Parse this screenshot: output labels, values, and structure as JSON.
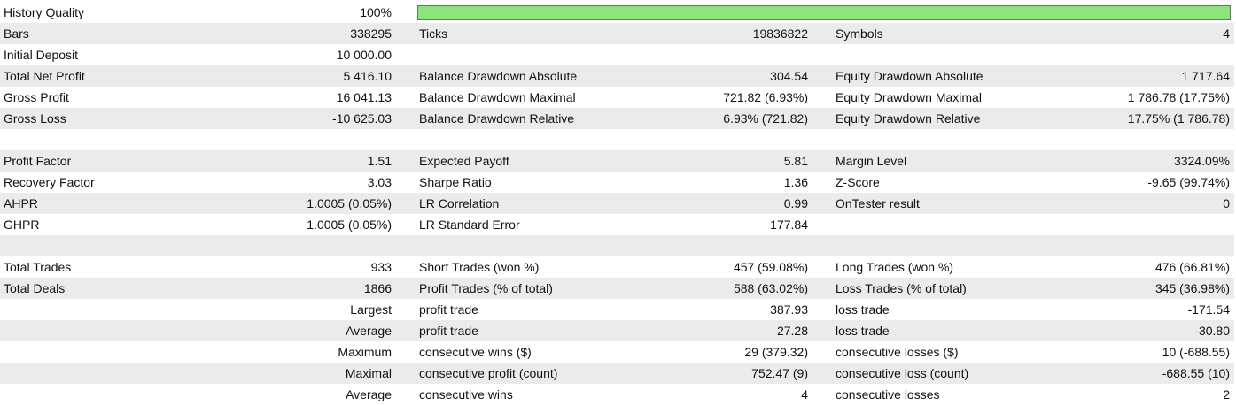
{
  "history_quality": {
    "label": "History Quality",
    "value": "100%",
    "fill_fraction": 1.0,
    "bar_color": "#8ae47a"
  },
  "row_shade_color": "#ebebeb",
  "bars": {
    "label": "Bars",
    "value": "338295"
  },
  "ticks": {
    "label": "Ticks",
    "value": "19836822"
  },
  "symbols": {
    "label": "Symbols",
    "value": "4"
  },
  "initial_deposit": {
    "label": "Initial Deposit",
    "value": "10 000.00"
  },
  "total_net_profit": {
    "label": "Total Net Profit",
    "value": "5 416.10"
  },
  "balance_dd_abs": {
    "label": "Balance Drawdown Absolute",
    "value": "304.54"
  },
  "equity_dd_abs": {
    "label": "Equity Drawdown Absolute",
    "value": "1 717.64"
  },
  "gross_profit": {
    "label": "Gross Profit",
    "value": "16 041.13"
  },
  "balance_dd_max": {
    "label": "Balance Drawdown Maximal",
    "value": "721.82 (6.93%)"
  },
  "equity_dd_max": {
    "label": "Equity Drawdown Maximal",
    "value": "1 786.78 (17.75%)"
  },
  "gross_loss": {
    "label": "Gross Loss",
    "value": "-10 625.03"
  },
  "balance_dd_rel": {
    "label": "Balance Drawdown Relative",
    "value": "6.93% (721.82)"
  },
  "equity_dd_rel": {
    "label": "Equity Drawdown Relative",
    "value": "17.75% (1 786.78)"
  },
  "profit_factor": {
    "label": "Profit Factor",
    "value": "1.51"
  },
  "expected_payoff": {
    "label": "Expected Payoff",
    "value": "5.81"
  },
  "margin_level": {
    "label": "Margin Level",
    "value": "3324.09%"
  },
  "recovery_factor": {
    "label": "Recovery Factor",
    "value": "3.03"
  },
  "sharpe_ratio": {
    "label": "Sharpe Ratio",
    "value": "1.36"
  },
  "z_score": {
    "label": "Z-Score",
    "value": "-9.65 (99.74%)"
  },
  "ahpr": {
    "label": "AHPR",
    "value": "1.0005 (0.05%)"
  },
  "lr_correlation": {
    "label": "LR Correlation",
    "value": "0.99"
  },
  "ontester_result": {
    "label": "OnTester result",
    "value": "0"
  },
  "ghpr": {
    "label": "GHPR",
    "value": "1.0005 (0.05%)"
  },
  "lr_std_error": {
    "label": "LR Standard Error",
    "value": "177.84"
  },
  "total_trades": {
    "label": "Total Trades",
    "value": "933"
  },
  "short_trades": {
    "label": "Short Trades (won %)",
    "value": "457 (59.08%)"
  },
  "long_trades": {
    "label": "Long Trades (won %)",
    "value": "476 (66.81%)"
  },
  "total_deals": {
    "label": "Total Deals",
    "value": "1866"
  },
  "profit_trades": {
    "label": "Profit Trades (% of total)",
    "value": "588 (63.02%)"
  },
  "loss_trades": {
    "label": "Loss Trades (% of total)",
    "value": "345 (36.98%)"
  },
  "largest": {
    "label": "Largest",
    "profit_label": "profit trade",
    "profit_value": "387.93",
    "loss_label": "loss trade",
    "loss_value": "-171.54"
  },
  "average_trade": {
    "label": "Average",
    "profit_label": "profit trade",
    "profit_value": "27.28",
    "loss_label": "loss trade",
    "loss_value": "-30.80"
  },
  "maximum": {
    "label": "Maximum",
    "wins_label": "consecutive wins ($)",
    "wins_value": "29 (379.32)",
    "losses_label": "consecutive losses ($)",
    "losses_value": "10 (-688.55)"
  },
  "maximal": {
    "label": "Maximal",
    "profit_label": "consecutive profit (count)",
    "profit_value": "752.47 (9)",
    "loss_label": "consecutive loss (count)",
    "loss_value": "-688.55 (10)"
  },
  "average_consecutive": {
    "label": "Average",
    "wins_label": "consecutive wins",
    "wins_value": "4",
    "losses_label": "consecutive losses",
    "losses_value": "2"
  }
}
